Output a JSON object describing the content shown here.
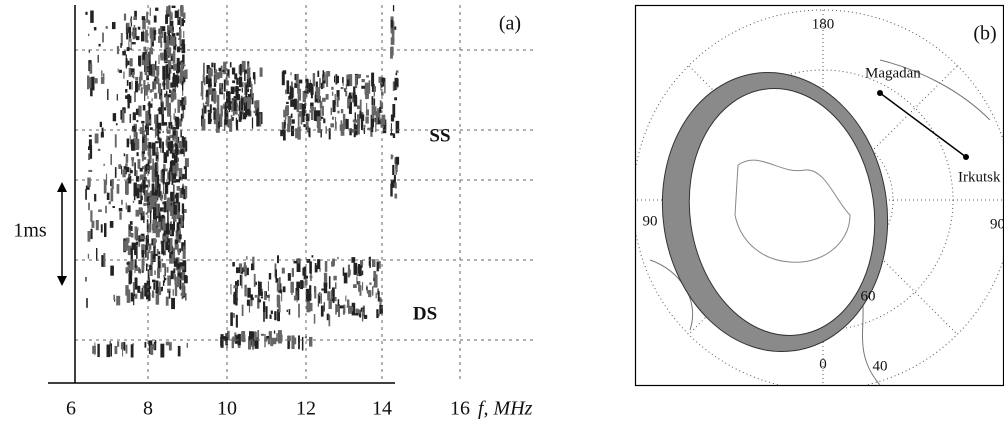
{
  "panel_a": {
    "label": "(a)",
    "x_ticks": [
      "6",
      "8",
      "10",
      "12",
      "14",
      "16"
    ],
    "x_axis_label": "f, MHz",
    "annotations": {
      "ss": "SS",
      "ds": "DS",
      "scale": "1ms"
    }
  },
  "panel_b": {
    "label": "(b)",
    "grid_labels": {
      "top": "180",
      "left": "90",
      "right": "90",
      "bottom": "0",
      "lat_60": "60",
      "lat_40": "40"
    },
    "stations": [
      "Magadan",
      "Irkutsk"
    ]
  }
}
